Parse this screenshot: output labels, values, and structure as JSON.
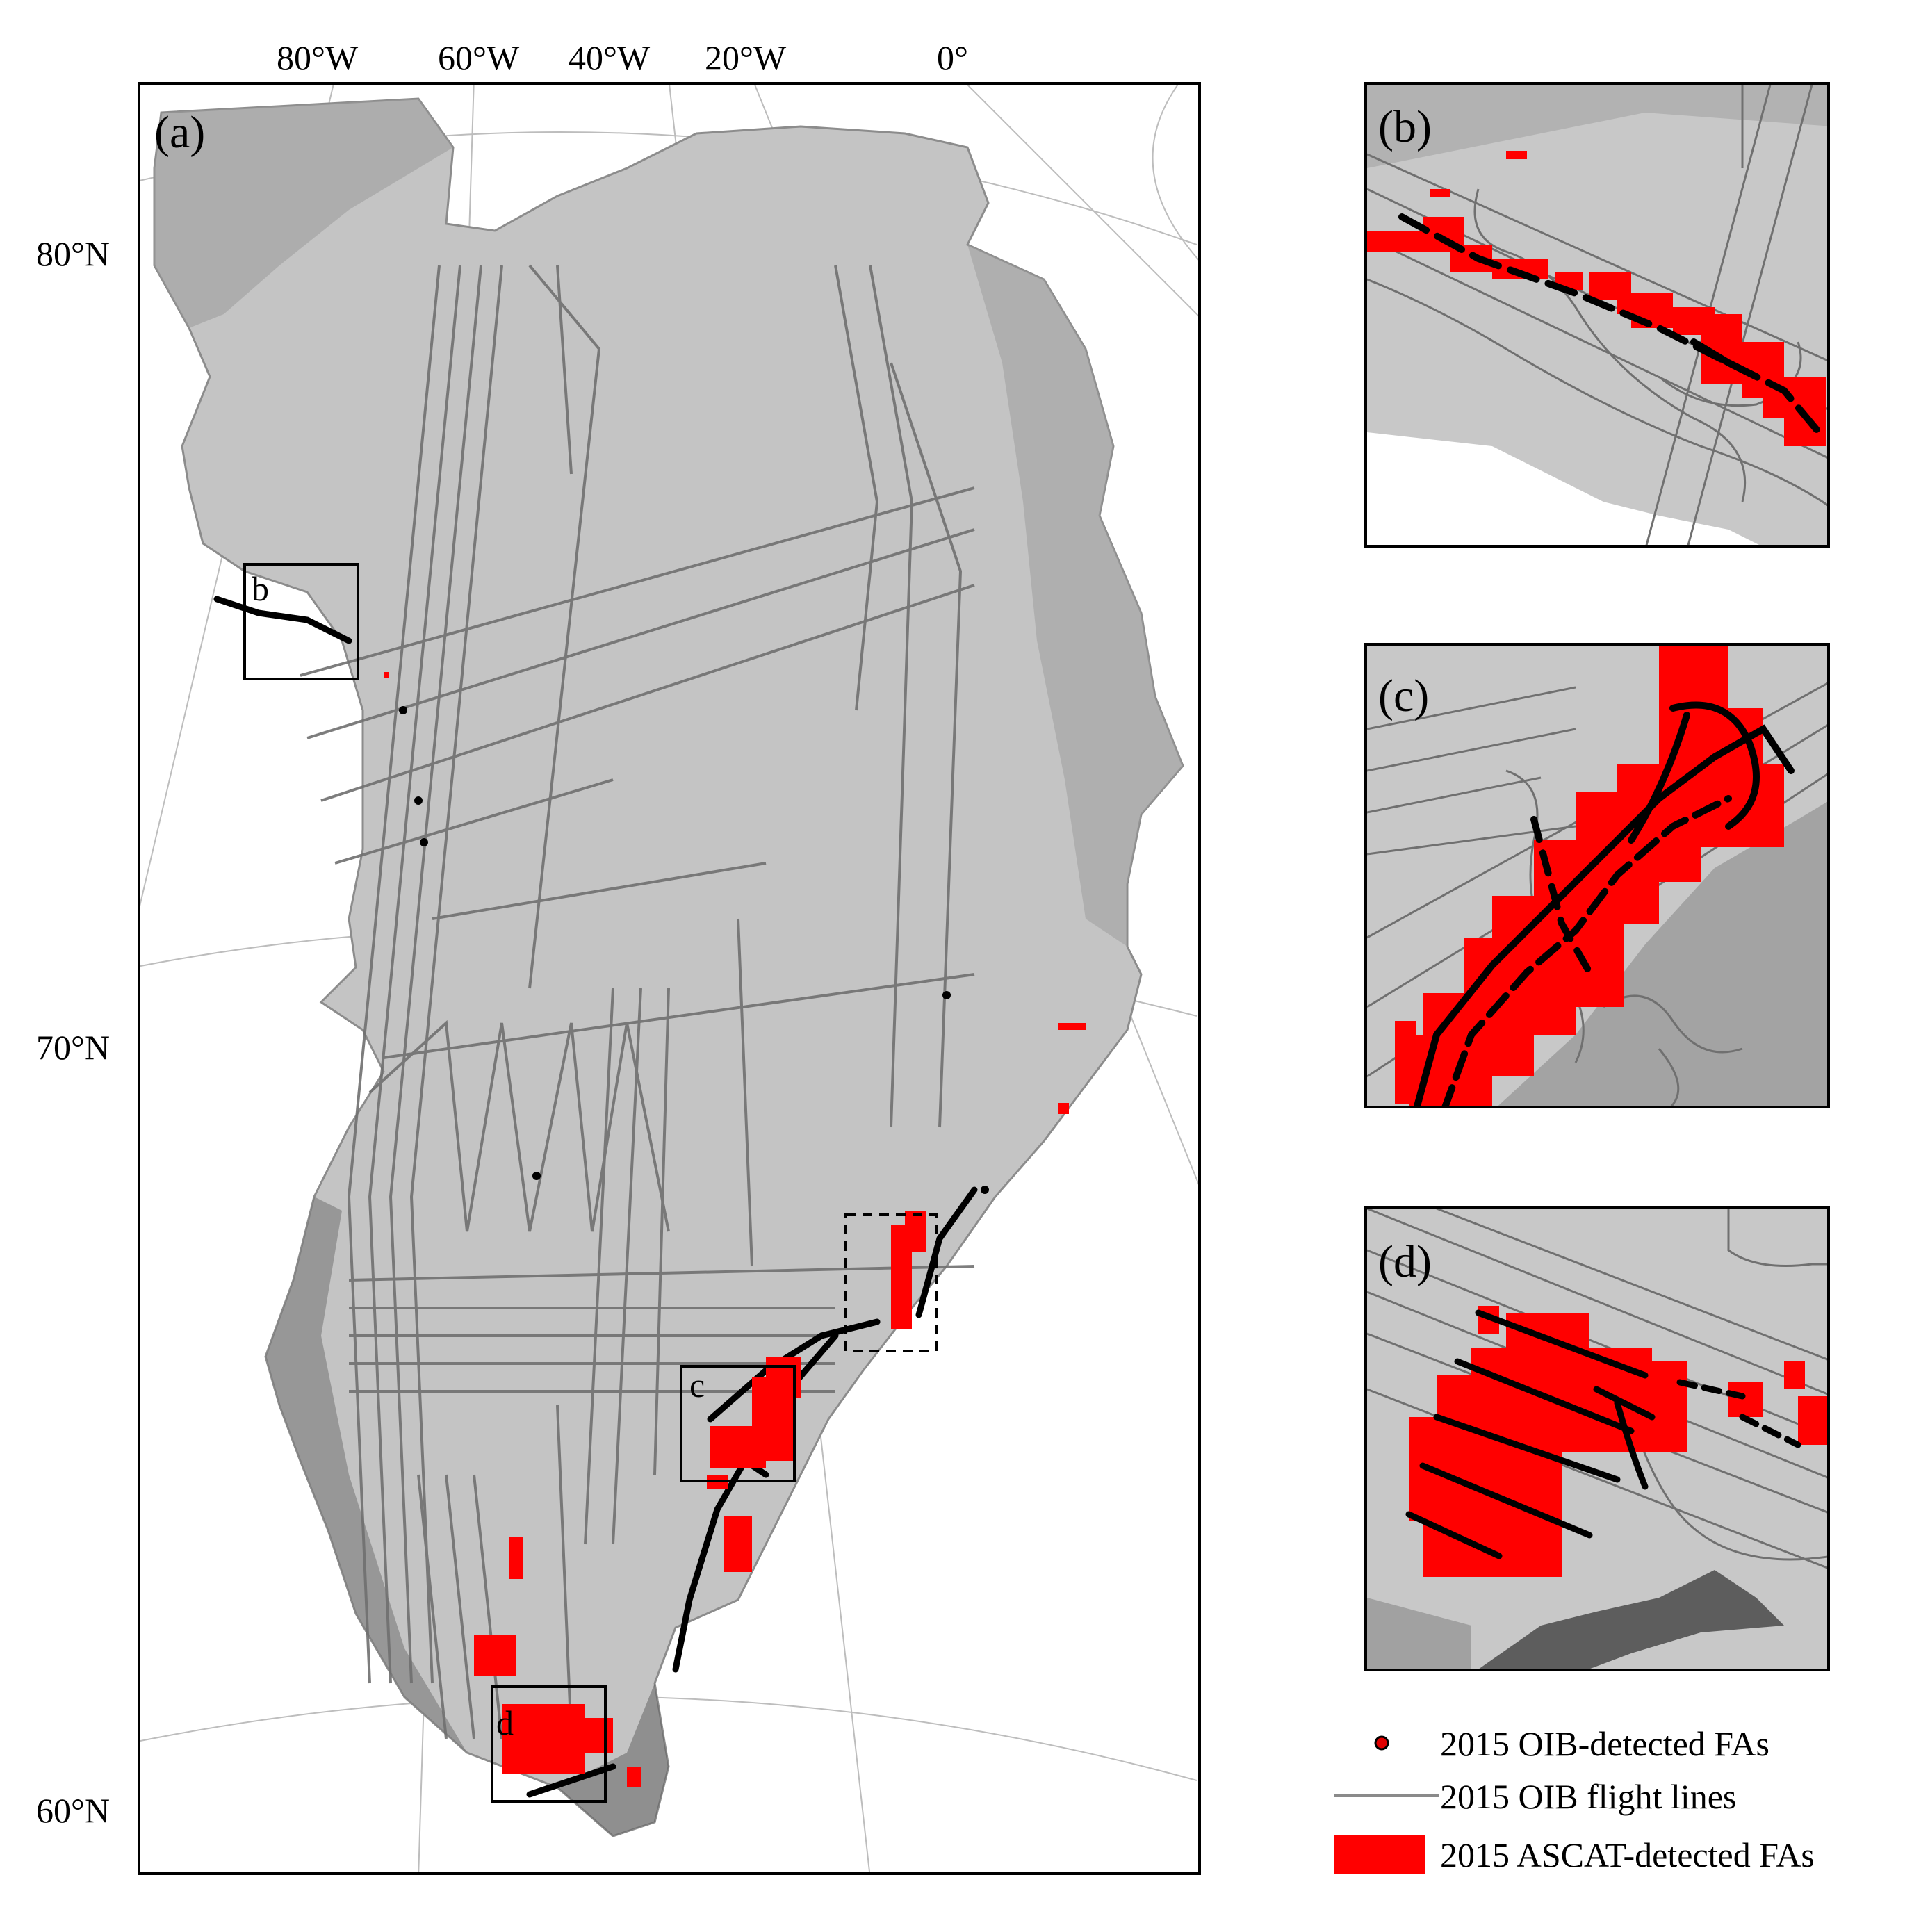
{
  "main_map": {
    "panel_label": "(a)",
    "longitude_labels": [
      "80°W",
      "60°W",
      "40°W",
      "20°W",
      "0°"
    ],
    "latitude_labels": [
      "80°N",
      "70°N",
      "60°N"
    ],
    "box_labels": {
      "b": "b",
      "c": "c",
      "d": "d"
    }
  },
  "insets": [
    {
      "label": "(b)"
    },
    {
      "label": "(c)"
    },
    {
      "label": "(d)"
    }
  ],
  "legend": {
    "items": [
      {
        "label": "2015 OIB-detected FAs",
        "symbol": "point",
        "fill": "#e00000",
        "stroke": "#000000"
      },
      {
        "label": "2015 OIB flight lines",
        "symbol": "line",
        "color": "#8a8a8a"
      },
      {
        "label": "2015 ASCAT-detected FAs",
        "symbol": "patch",
        "color": "#ff0000"
      }
    ]
  },
  "colors": {
    "ice_sheet": "#c6c6c6",
    "terrain": "#a0a0a0",
    "flight_line": "#707070",
    "ascat_fa": "#ff0000",
    "oib_fa": "#000000",
    "graticule": "#b8b8b8"
  }
}
